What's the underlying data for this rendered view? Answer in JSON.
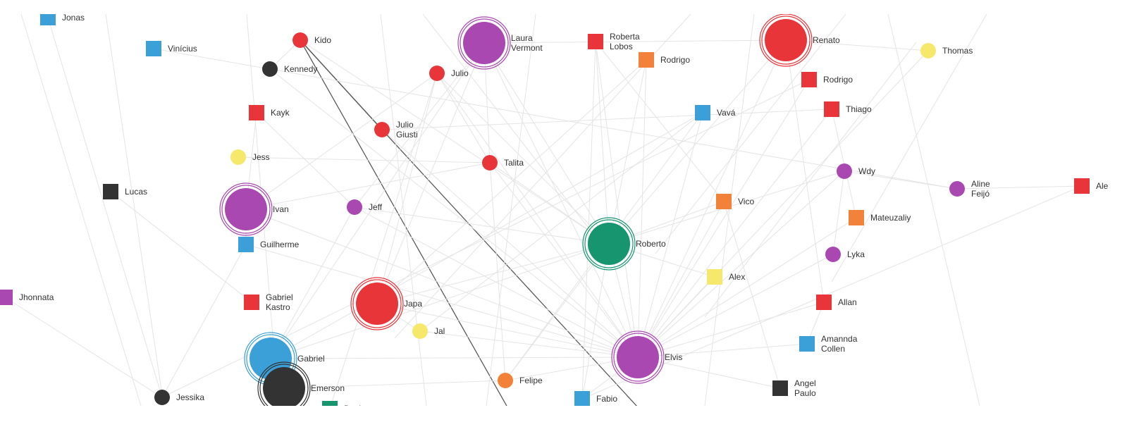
{
  "colors": {
    "red": "#e8353a",
    "purple": "#a848b0",
    "blue": "#3b9fd8",
    "orange": "#f2813a",
    "yellow": "#f5e86a",
    "black": "#333333",
    "teal": "#17956f",
    "edge": "#e4e4e4",
    "edge_highlight": "#5a5a5a"
  },
  "nodes": [
    {
      "id": "jonas",
      "label": [
        "Jonas"
      ],
      "shape": "square",
      "color": "blue"
    },
    {
      "id": "vinicius",
      "label": [
        "Vinícius"
      ],
      "shape": "square",
      "color": "blue"
    },
    {
      "id": "kido",
      "label": [
        "Kido"
      ],
      "shape": "circle",
      "color": "red"
    },
    {
      "id": "kennedy",
      "label": [
        "Kennedy"
      ],
      "shape": "circle",
      "color": "black"
    },
    {
      "id": "laura",
      "label": [
        "Laura",
        "Vermont"
      ],
      "shape": "circle",
      "color": "purple",
      "big": true
    },
    {
      "id": "julio",
      "label": [
        "Julio"
      ],
      "shape": "circle",
      "color": "red"
    },
    {
      "id": "roberta",
      "label": [
        "Roberta",
        "Lobos"
      ],
      "shape": "square",
      "color": "red"
    },
    {
      "id": "rodrigo1",
      "label": [
        "Rodrigo"
      ],
      "shape": "square",
      "color": "orange"
    },
    {
      "id": "renato",
      "label": [
        "Renato"
      ],
      "shape": "circle",
      "color": "red",
      "big": true
    },
    {
      "id": "thomas",
      "label": [
        "Thomas"
      ],
      "shape": "circle",
      "color": "yellow"
    },
    {
      "id": "rodrigo2",
      "label": [
        "Rodrigo"
      ],
      "shape": "square",
      "color": "red"
    },
    {
      "id": "kayk",
      "label": [
        "Kayk"
      ],
      "shape": "square",
      "color": "red"
    },
    {
      "id": "vava",
      "label": [
        "Vavá"
      ],
      "shape": "square",
      "color": "blue"
    },
    {
      "id": "thiago",
      "label": [
        "Thiago"
      ],
      "shape": "square",
      "color": "red"
    },
    {
      "id": "juliog",
      "label": [
        "Julio",
        "Giusti"
      ],
      "shape": "circle",
      "color": "red"
    },
    {
      "id": "jess",
      "label": [
        "Jess"
      ],
      "shape": "circle",
      "color": "yellow"
    },
    {
      "id": "talita",
      "label": [
        "Talita"
      ],
      "shape": "circle",
      "color": "red"
    },
    {
      "id": "wdy",
      "label": [
        "Wdy"
      ],
      "shape": "circle",
      "color": "purple"
    },
    {
      "id": "lucas",
      "label": [
        "Lucas"
      ],
      "shape": "square",
      "color": "black"
    },
    {
      "id": "aline",
      "label": [
        "Aline",
        "Feijó"
      ],
      "shape": "circle",
      "color": "purple"
    },
    {
      "id": "ale",
      "label": [
        "Ale"
      ],
      "shape": "square",
      "color": "red"
    },
    {
      "id": "ivan",
      "label": [
        "Ivan"
      ],
      "shape": "circle",
      "color": "purple",
      "big": true
    },
    {
      "id": "jeff",
      "label": [
        "Jeff"
      ],
      "shape": "circle",
      "color": "purple"
    },
    {
      "id": "vico",
      "label": [
        "Vico"
      ],
      "shape": "square",
      "color": "orange"
    },
    {
      "id": "mateuzaliy",
      "label": [
        "Mateuzaliy"
      ],
      "shape": "square",
      "color": "orange"
    },
    {
      "id": "guilherme",
      "label": [
        "Guilherme"
      ],
      "shape": "square",
      "color": "blue"
    },
    {
      "id": "roberto",
      "label": [
        "Roberto"
      ],
      "shape": "circle",
      "color": "teal",
      "big": true
    },
    {
      "id": "lyka",
      "label": [
        "Lyka"
      ],
      "shape": "circle",
      "color": "purple"
    },
    {
      "id": "alex",
      "label": [
        "Alex"
      ],
      "shape": "square",
      "color": "yellow"
    },
    {
      "id": "jhonnata",
      "label": [
        "Jhonnata"
      ],
      "shape": "square",
      "color": "purple"
    },
    {
      "id": "gabrielk",
      "label": [
        "Gabriel",
        "Kastro"
      ],
      "shape": "square",
      "color": "red"
    },
    {
      "id": "japa",
      "label": [
        "Japa"
      ],
      "shape": "circle",
      "color": "red",
      "big": true
    },
    {
      "id": "allan",
      "label": [
        "Allan"
      ],
      "shape": "square",
      "color": "red"
    },
    {
      "id": "jal",
      "label": [
        "Jal"
      ],
      "shape": "circle",
      "color": "yellow"
    },
    {
      "id": "amannda",
      "label": [
        "Amannda",
        "Collen"
      ],
      "shape": "square",
      "color": "blue"
    },
    {
      "id": "gabriel",
      "label": [
        "Gabriel"
      ],
      "shape": "circle",
      "color": "blue",
      "big": true
    },
    {
      "id": "elvis",
      "label": [
        "Elvis"
      ],
      "shape": "circle",
      "color": "purple",
      "big": true
    },
    {
      "id": "emerson",
      "label": [
        "Emerson"
      ],
      "shape": "circle",
      "color": "black",
      "big": true
    },
    {
      "id": "felipe",
      "label": [
        "Felipe"
      ],
      "shape": "circle",
      "color": "orange"
    },
    {
      "id": "angel",
      "label": [
        "Angel",
        "Paulo"
      ],
      "shape": "square",
      "color": "black"
    },
    {
      "id": "jessika",
      "label": [
        "Jessika"
      ],
      "shape": "circle",
      "color": "black"
    },
    {
      "id": "fabio",
      "label": [
        "Fabio"
      ],
      "shape": "square",
      "color": "blue"
    },
    {
      "id": "davi",
      "label": [
        "Davi"
      ],
      "shape": "square",
      "color": "teal"
    }
  ],
  "edges": [
    [
      "kido",
      "juliog",
      true
    ],
    [
      "kido",
      "juliog",
      true
    ],
    [
      "kido",
      "bottom1",
      true
    ],
    [
      "juliog",
      "bottom2",
      true
    ],
    [
      "elvis",
      "laura"
    ],
    [
      "elvis",
      "roberta"
    ],
    [
      "elvis",
      "rodrigo1"
    ],
    [
      "elvis",
      "renato"
    ],
    [
      "elvis",
      "thomas"
    ],
    [
      "elvis",
      "rodrigo2"
    ],
    [
      "elvis",
      "vava"
    ],
    [
      "elvis",
      "thiago"
    ],
    [
      "elvis",
      "juliog"
    ],
    [
      "elvis",
      "talita"
    ],
    [
      "elvis",
      "wdy"
    ],
    [
      "elvis",
      "jeff"
    ],
    [
      "elvis",
      "vico"
    ],
    [
      "elvis",
      "mateuzaliy"
    ],
    [
      "elvis",
      "guilherme"
    ],
    [
      "elvis",
      "roberto"
    ],
    [
      "elvis",
      "lyka"
    ],
    [
      "elvis",
      "alex"
    ],
    [
      "elvis",
      "japa"
    ],
    [
      "elvis",
      "allan"
    ],
    [
      "elvis",
      "jal"
    ],
    [
      "elvis",
      "amannda"
    ],
    [
      "elvis",
      "gabriel"
    ],
    [
      "elvis",
      "felipe"
    ],
    [
      "elvis",
      "angel"
    ],
    [
      "elvis",
      "fabio"
    ],
    [
      "elvis",
      "julio"
    ],
    [
      "elvis",
      "kennedy"
    ],
    [
      "elvis",
      "ivan"
    ],
    [
      "roberto",
      "laura"
    ],
    [
      "roberto",
      "roberta"
    ],
    [
      "roberto",
      "rodrigo1"
    ],
    [
      "roberto",
      "renato"
    ],
    [
      "roberto",
      "talita"
    ],
    [
      "roberto",
      "jeff"
    ],
    [
      "roberto",
      "japa"
    ],
    [
      "roberto",
      "gabriel"
    ],
    [
      "roberto",
      "vico"
    ],
    [
      "roberto",
      "alex"
    ],
    [
      "roberto",
      "kido"
    ],
    [
      "roberto",
      "julio"
    ],
    [
      "roberto",
      "wdy"
    ],
    [
      "roberto",
      "felipe"
    ],
    [
      "roberto",
      "fabio"
    ],
    [
      "kennedy",
      "vinicius"
    ],
    [
      "kennedy",
      "aline"
    ],
    [
      "kennedy",
      "kido"
    ],
    [
      "aline",
      "wdy"
    ],
    [
      "aline",
      "ale"
    ],
    [
      "thomas",
      "renato"
    ],
    [
      "renato",
      "laura"
    ],
    [
      "ivan",
      "julio"
    ],
    [
      "ivan",
      "kayk"
    ],
    [
      "ivan",
      "talita"
    ],
    [
      "jess",
      "talita"
    ],
    [
      "lucas",
      "gabrielk"
    ],
    [
      "jonas",
      "jessika"
    ],
    [
      "jhonnata",
      "jessika"
    ],
    [
      "japa",
      "laura"
    ],
    [
      "japa",
      "rodrigo1"
    ],
    [
      "japa",
      "julio"
    ],
    [
      "japa",
      "jal"
    ],
    [
      "gabriel",
      "laura"
    ],
    [
      "gabriel",
      "vava"
    ],
    [
      "gabriel",
      "jeff"
    ],
    [
      "emerson",
      "felipe"
    ],
    [
      "jessika",
      "guilherme"
    ],
    [
      "talita",
      "julio"
    ],
    [
      "talita",
      "laura"
    ],
    [
      "talita",
      "felipe"
    ],
    [
      "vico",
      "roberta"
    ],
    [
      "allan",
      "renato"
    ],
    [
      "lyka",
      "wdy"
    ],
    [
      "mateuzaliy",
      "thiago"
    ],
    [
      "amannda",
      "allan"
    ],
    [
      "angel",
      "vico"
    ],
    [
      "fabio",
      "roberta"
    ],
    [
      "felipe",
      "vava"
    ],
    [
      "davi",
      "julio"
    ],
    [
      "ale",
      "fabio"
    ],
    [
      "kayk",
      "jeff"
    ],
    [
      "guilherme",
      "ivan"
    ],
    [
      "jeff",
      "laura"
    ],
    [
      "jal",
      "vava"
    ],
    [
      "rodrigo2",
      "jessika"
    ],
    [
      "thiago",
      "juliog"
    ]
  ]
}
